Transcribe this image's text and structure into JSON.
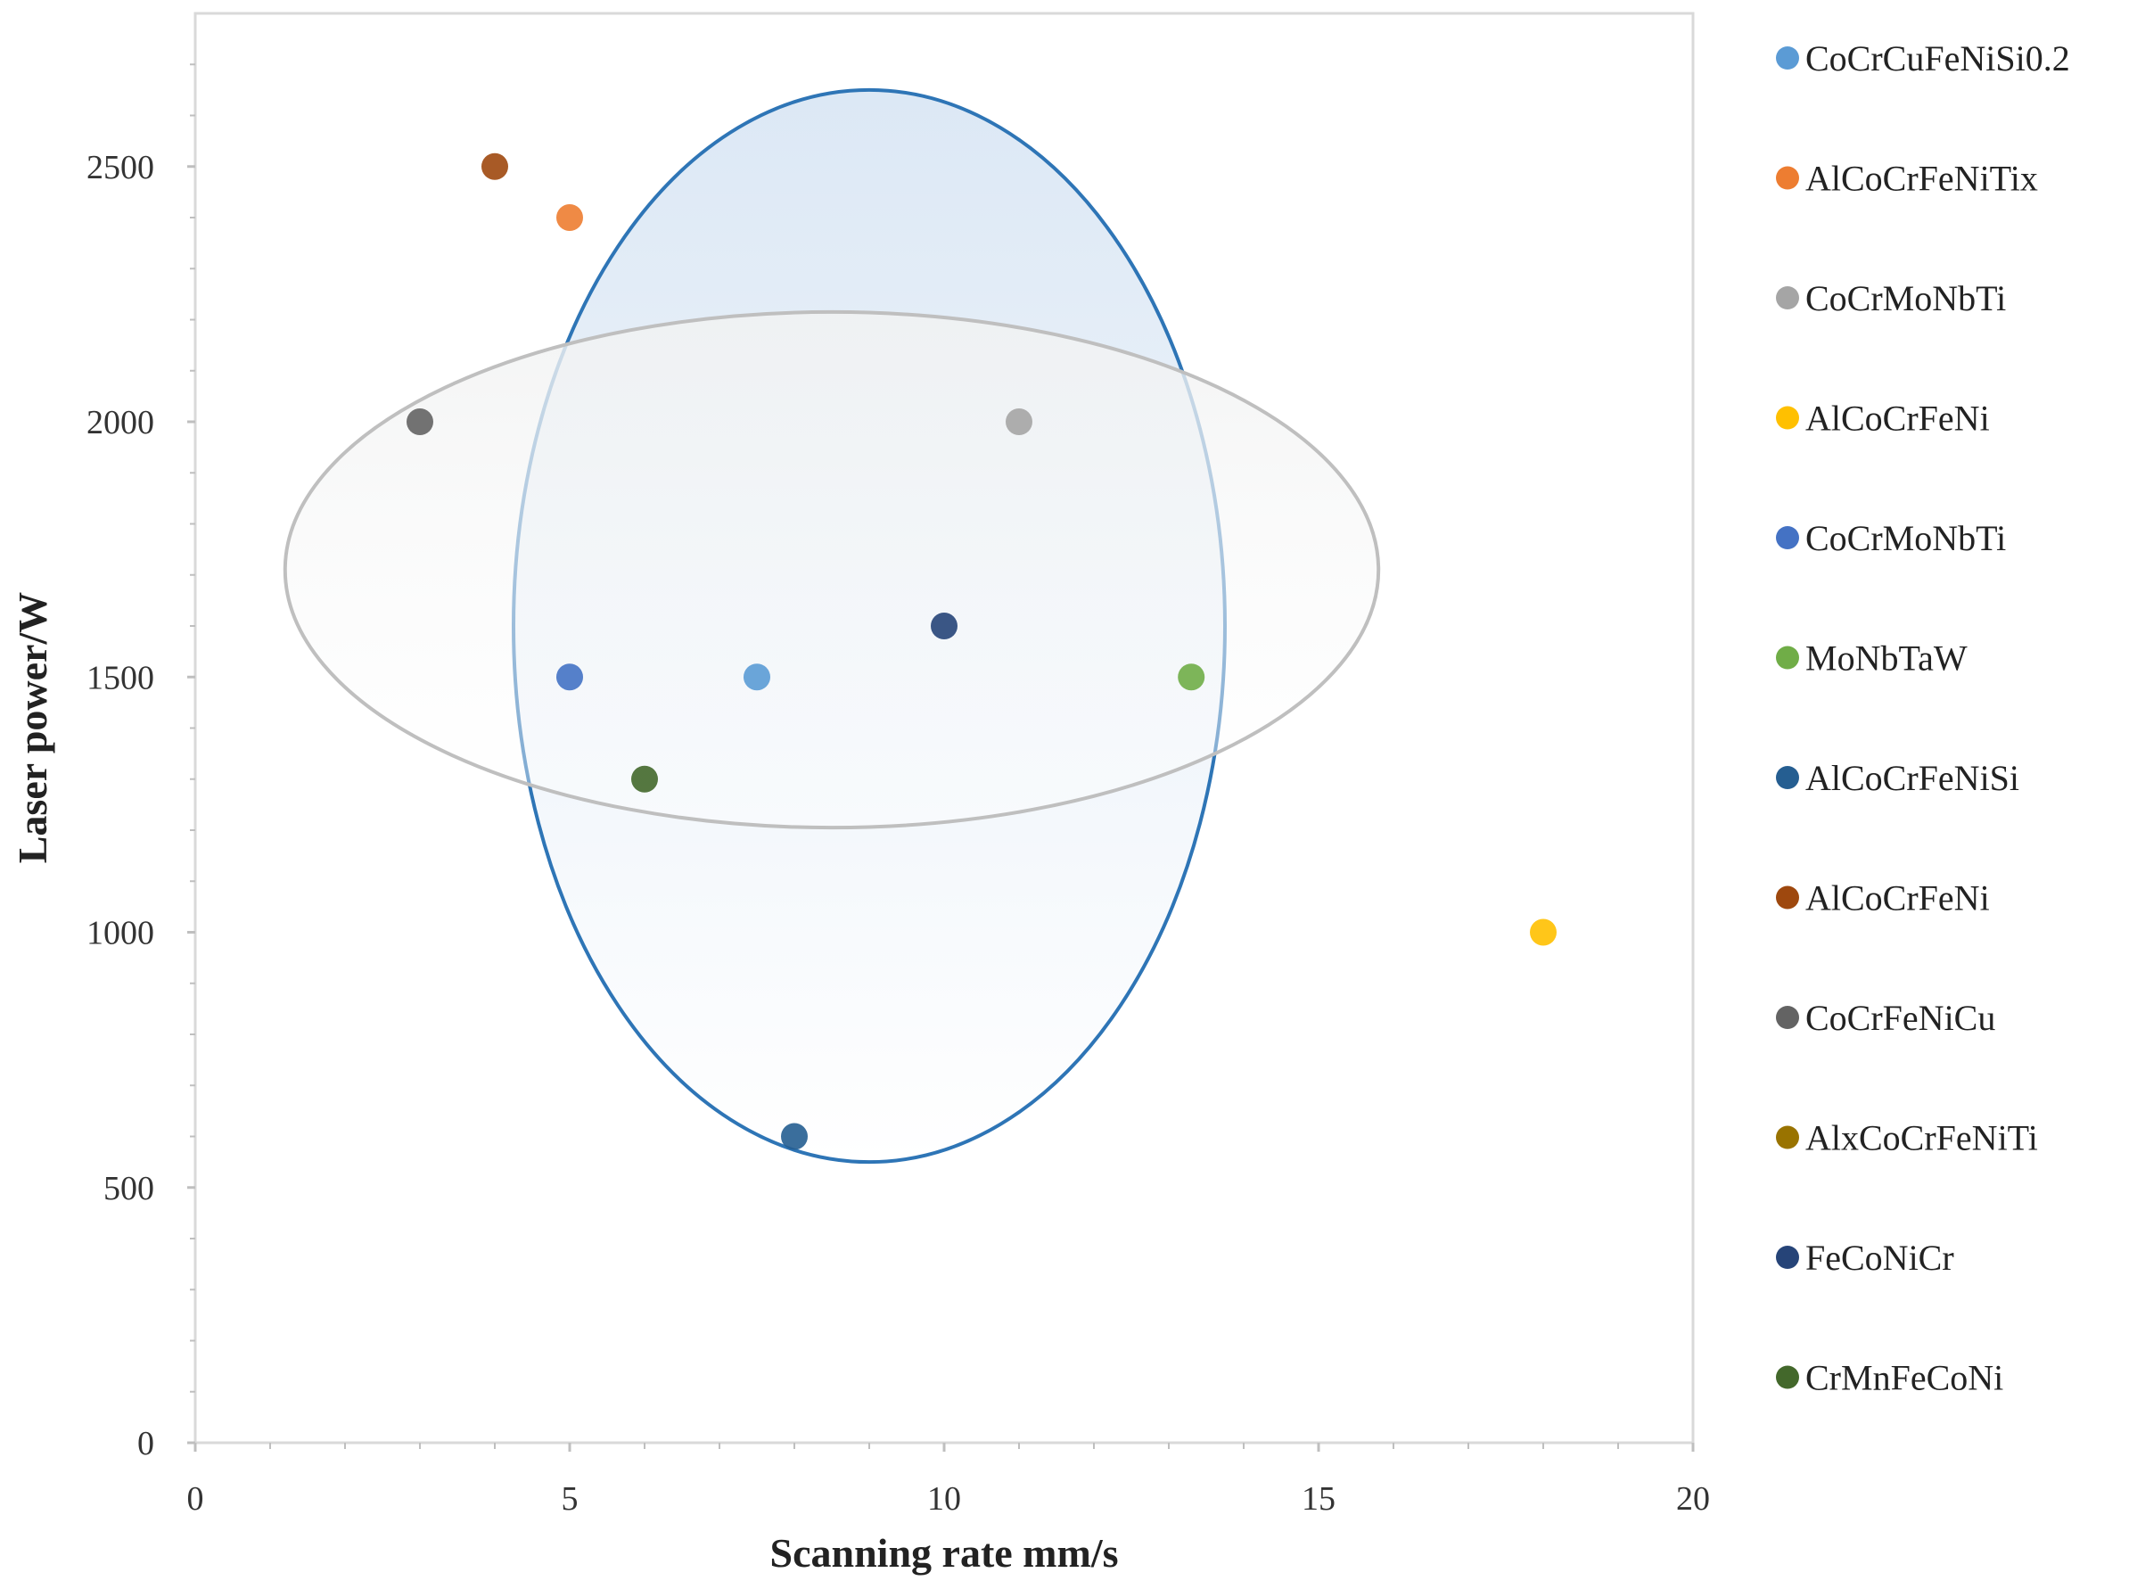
{
  "chart_data": {
    "type": "scatter",
    "title": "",
    "xlabel": "Scanning rate  mm/s",
    "ylabel": "Laser power/W",
    "xlim": [
      0,
      20
    ],
    "ylim": [
      0,
      2800
    ],
    "xticks": [
      0,
      5,
      10,
      15,
      20
    ],
    "yticks": [
      0,
      500,
      1000,
      1500,
      2000,
      2500
    ],
    "legend_position": "right",
    "series": [
      {
        "name": "CoCrCuFeNiSi0.2",
        "color": "#5B9BD5",
        "points": [
          {
            "x": 7.5,
            "y": 1500
          }
        ]
      },
      {
        "name": "AlCoCrFeNiTix",
        "color": "#ED7D31",
        "points": [
          {
            "x": 5,
            "y": 2400
          }
        ]
      },
      {
        "name": "CoCrMoNbTi",
        "color": "#A5A5A5",
        "points": [
          {
            "x": 11,
            "y": 2000
          }
        ]
      },
      {
        "name": "AlCoCrFeNi",
        "color": "#FFC000",
        "points": [
          {
            "x": 18,
            "y": 1000
          }
        ]
      },
      {
        "name": "CoCrMoNbTi",
        "color": "#4472C4",
        "points": [
          {
            "x": 5,
            "y": 1500
          }
        ]
      },
      {
        "name": "MoNbTaW",
        "color": "#70AD47",
        "points": [
          {
            "x": 13.3,
            "y": 1500
          }
        ]
      },
      {
        "name": "AlCoCrFeNiSi",
        "color": "#255E91",
        "points": [
          {
            "x": 8,
            "y": 600
          }
        ]
      },
      {
        "name": "AlCoCrFeNi",
        "color": "#9E480E",
        "points": [
          {
            "x": 4,
            "y": 2500
          }
        ]
      },
      {
        "name": "CoCrFeNiCu",
        "color": "#636363",
        "points": [
          {
            "x": 3,
            "y": 2000
          }
        ]
      },
      {
        "name": "AlxCoCrFeNiTi",
        "color": "#997300",
        "points": []
      },
      {
        "name": "FeCoNiCr",
        "color": "#264478",
        "points": [
          {
            "x": 10,
            "y": 1600
          }
        ]
      },
      {
        "name": "CrMnFeCoNi",
        "color": "#43682B",
        "points": [
          {
            "x": 6,
            "y": 1300
          }
        ]
      }
    ],
    "annotations": [
      {
        "shape": "ellipse",
        "color": "#2E75B6",
        "fill": "light-blue-gradient",
        "center": {
          "x": 9,
          "y": 1600
        },
        "radius_x": 4.75,
        "radius_y": 1050
      },
      {
        "shape": "ellipse",
        "color": "#BFBFBF",
        "fill": "light-gray-gradient",
        "center": {
          "x": 8.5,
          "y": 1710
        },
        "radius_x": 7.3,
        "radius_y": 505
      }
    ]
  }
}
